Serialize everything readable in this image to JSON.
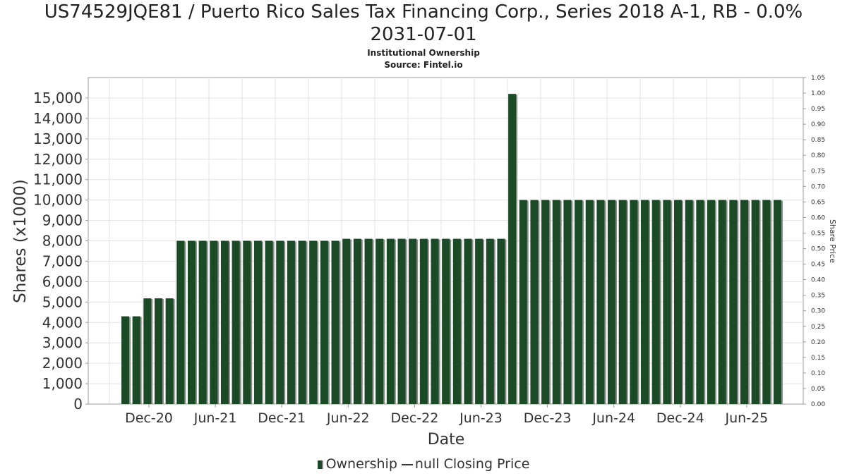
{
  "title_line1": "US74529JQE81 / Puerto Rico Sales Tax Financing Corp., Series 2018 A-1, RB - 0.0%",
  "title_line2": "2031-07-01",
  "subtitle1": "Institutional Ownership",
  "subtitle2": "Source: Fintel.io",
  "legend": {
    "series1": "Ownership",
    "series2": "null Closing Price"
  },
  "colors": {
    "bar": "#1a4a26",
    "bar_shadow": "#8c8c8c",
    "grid": "#e3e3e3"
  },
  "chart_data": {
    "type": "bar",
    "title": "US74529JQE81 / Puerto Rico Sales Tax Financing Corp., Series 2018 A-1, RB - 0.0% 2031-07-01",
    "subtitle": "Institutional Ownership",
    "xlabel": "Date",
    "ylabel": "Shares (x1000)",
    "y2label": "Share Price",
    "ylim": [
      0,
      16000
    ],
    "y2lim": [
      0,
      1.05
    ],
    "yticks": [
      "0",
      "1,000",
      "2,000",
      "3,000",
      "4,000",
      "5,000",
      "6,000",
      "7,000",
      "8,000",
      "9,000",
      "10,000",
      "11,000",
      "12,000",
      "13,000",
      "14,000",
      "15,000"
    ],
    "y2ticks": [
      "0.00",
      "0.05",
      "0.10",
      "0.15",
      "0.20",
      "0.25",
      "0.30",
      "0.35",
      "0.40",
      "0.45",
      "0.50",
      "0.55",
      "0.60",
      "0.65",
      "0.70",
      "0.75",
      "0.80",
      "0.85",
      "0.90",
      "0.95",
      "1.00",
      "1.05"
    ],
    "xticks": [
      "Dec-20",
      "Jun-21",
      "Dec-21",
      "Jun-22",
      "Dec-22",
      "Jun-23",
      "Dec-23",
      "Jun-24",
      "Dec-24",
      "Jun-25"
    ],
    "grid": true,
    "legend_position": "bottom",
    "series": [
      {
        "name": "Ownership",
        "values": [
          4300,
          4300,
          5180,
          5180,
          5180,
          8000,
          8000,
          8000,
          8000,
          8000,
          8000,
          8000,
          8000,
          8000,
          8000,
          8000,
          8000,
          8000,
          8000,
          8000,
          8100,
          8100,
          8100,
          8100,
          8100,
          8100,
          8100,
          8100,
          8100,
          8100,
          8100,
          8100,
          8100,
          8100,
          8100,
          15200,
          10000,
          10000,
          10000,
          10000,
          10000,
          10000,
          10000,
          10000,
          10000,
          10000,
          10000,
          10000,
          10000,
          10000,
          10000,
          10000,
          10000,
          10000,
          10000,
          10000,
          10000,
          10000,
          10000,
          10000
        ]
      }
    ]
  }
}
